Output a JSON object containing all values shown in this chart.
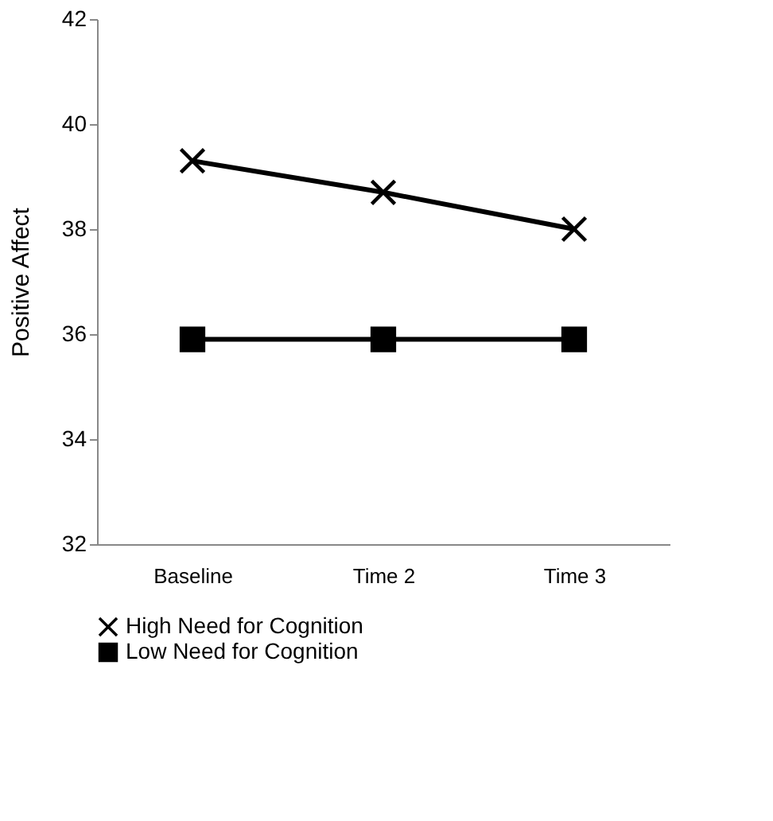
{
  "chart_data": {
    "type": "line",
    "ylabel": "Positive Affect",
    "categories": [
      "Baseline",
      "Time 2",
      "Time 3"
    ],
    "series": [
      {
        "name": "High Need for Cognition",
        "color": "#000000",
        "marker": "cross",
        "values": [
          39.3,
          38.7,
          38.0
        ]
      },
      {
        "name": "Low Need for Cognition",
        "color": "#000000",
        "marker": "square",
        "values": [
          35.9,
          35.9,
          35.9
        ]
      }
    ],
    "ylim": [
      32,
      42
    ],
    "yticks": [
      32,
      34,
      36,
      38,
      40,
      42
    ],
    "grid": false,
    "legend": "bottom",
    "line_style": "solid"
  }
}
